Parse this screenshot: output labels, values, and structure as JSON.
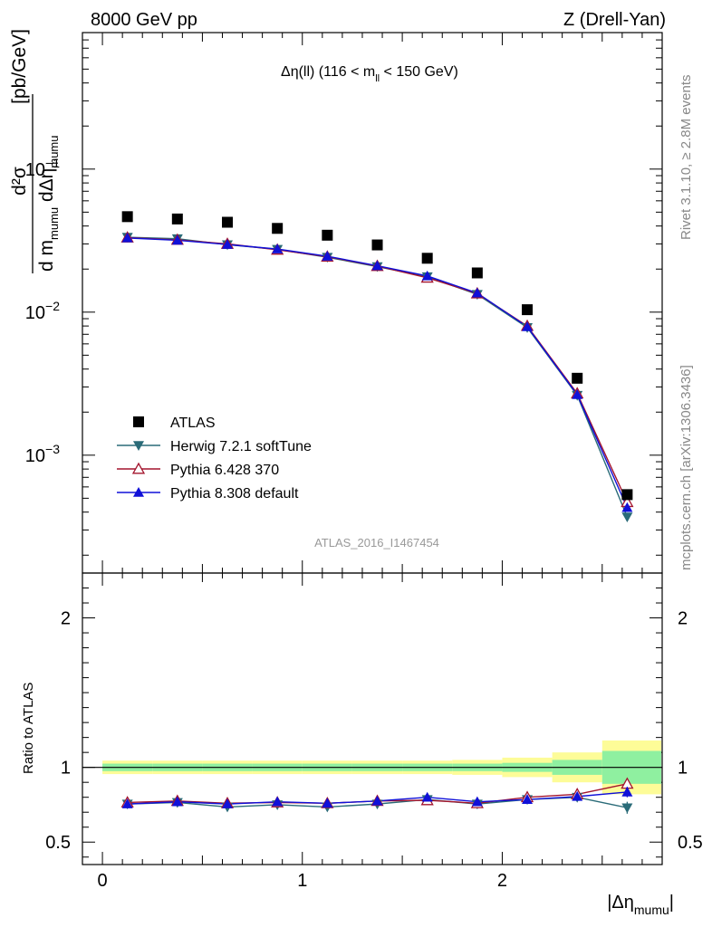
{
  "header": {
    "left": "8000 GeV pp",
    "right": "Z (Drell-Yan)"
  },
  "plot_title": {
    "main": "Δη(ll) (116 < m",
    "sub": "ll",
    "tail": " < 150 GeV)"
  },
  "side_labels": {
    "rivet": "Rivet 3.1.10, ≥ 2.8M events",
    "mcplots": "mcplots.cern.ch [arXiv:1306.3436]"
  },
  "analysis_id": "ATLAS_2016_I1467454",
  "y_label_main": {
    "unit": "[pb/GeV]",
    "num": "d²σ",
    "den_a": "d m",
    "den_a_sub": "mumu",
    "den_b": " dΔη",
    "den_b_sub": "mumu"
  },
  "y_label_ratio": "Ratio to ATLAS",
  "x_label": {
    "main": "|Δη",
    "sub": "mumu",
    "tail": "|"
  },
  "colors": {
    "atlas": "#000000",
    "herwig": "#2a6b78",
    "pythia6": "#a3142d",
    "pythia8": "#1010d8",
    "band_inner": "#8ff0a0",
    "band_outer": "#fdfc98"
  },
  "chart_data": [
    {
      "type": "line",
      "name": "main",
      "y_scale": "log",
      "xlim": [
        -0.1,
        2.8
      ],
      "ylim": [
        0.00015,
        0.9
      ],
      "y_ticks": [
        {
          "v": 0.1,
          "base": "10",
          "exp": "−1"
        },
        {
          "v": 0.01,
          "base": "10",
          "exp": "−2"
        },
        {
          "v": 0.001,
          "base": "10",
          "exp": "−3"
        }
      ],
      "x": [
        0.125,
        0.375,
        0.625,
        0.875,
        1.125,
        1.375,
        1.625,
        1.875,
        2.125,
        2.375,
        2.625
      ],
      "series": [
        {
          "name": "ATLAS",
          "marker": "square",
          "values": [
            0.0465,
            0.0448,
            0.0425,
            0.0385,
            0.0345,
            0.0295,
            0.0238,
            0.0188,
            0.0104,
            0.00345,
            0.00053
          ]
        },
        {
          "name": "Herwig 7.2.1 softTune",
          "marker": "triangle-down",
          "values": [
            0.0334,
            0.0326,
            0.0296,
            0.0275,
            0.0242,
            0.0208,
            0.0177,
            0.0133,
            0.0078,
            0.00262,
            0.00037
          ]
        },
        {
          "name": "Pythia 6.428 370",
          "marker": "triangle-up-open",
          "values": [
            0.0332,
            0.032,
            0.03,
            0.0273,
            0.0244,
            0.021,
            0.0174,
            0.0135,
            0.008,
            0.0027,
            0.00047
          ]
        },
        {
          "name": "Pythia 8.308 default",
          "marker": "triangle-up",
          "values": [
            0.033,
            0.0318,
            0.0297,
            0.0276,
            0.0246,
            0.0211,
            0.0179,
            0.0136,
            0.0079,
            0.00265,
            0.00043
          ]
        }
      ],
      "legend_position": "bottom-left"
    },
    {
      "type": "line",
      "name": "ratio",
      "xlim": [
        -0.1,
        2.8
      ],
      "ylim": [
        0.35,
        2.3
      ],
      "y_ticks": [
        {
          "v": 0.5,
          "label": "0.5"
        },
        {
          "v": 1,
          "label": "1"
        },
        {
          "v": 2,
          "label": "2"
        }
      ],
      "x_ticks": [
        {
          "v": 0,
          "label": "0"
        },
        {
          "v": 1,
          "label": "1"
        },
        {
          "v": 2,
          "label": "2"
        }
      ],
      "bins": [
        [
          0,
          0.25
        ],
        [
          0.25,
          0.5
        ],
        [
          0.5,
          0.75
        ],
        [
          0.75,
          1.0
        ],
        [
          1.0,
          1.25
        ],
        [
          1.25,
          1.5
        ],
        [
          1.5,
          1.75
        ],
        [
          1.75,
          2.0
        ],
        [
          2.0,
          2.25
        ],
        [
          2.25,
          2.5
        ],
        [
          2.5,
          2.8
        ]
      ],
      "band_inner": [
        0.025,
        0.025,
        0.025,
        0.025,
        0.025,
        0.025,
        0.025,
        0.025,
        0.03,
        0.05,
        0.11
      ],
      "band_outer": [
        0.045,
        0.045,
        0.045,
        0.045,
        0.045,
        0.045,
        0.045,
        0.05,
        0.065,
        0.1,
        0.18
      ],
      "x": [
        0.125,
        0.375,
        0.625,
        0.875,
        1.125,
        1.375,
        1.625,
        1.875,
        2.125,
        2.375,
        2.625
      ],
      "series": [
        {
          "name": "Herwig 7.2.1 softTune",
          "marker": "triangle-down",
          "values": [
            0.755,
            0.765,
            0.735,
            0.75,
            0.735,
            0.755,
            0.785,
            0.755,
            0.785,
            0.8,
            0.73
          ],
          "errors": [
            0.005,
            0.005,
            0.005,
            0.005,
            0.005,
            0.005,
            0.006,
            0.006,
            0.01,
            0.015,
            0.04
          ]
        },
        {
          "name": "Pythia 6.428 370",
          "marker": "triangle-up-open",
          "values": [
            0.765,
            0.775,
            0.76,
            0.765,
            0.76,
            0.775,
            0.78,
            0.76,
            0.8,
            0.82,
            0.89
          ],
          "errors": [
            0.005,
            0.005,
            0.005,
            0.005,
            0.005,
            0.005,
            0.006,
            0.006,
            0.01,
            0.015,
            0.035
          ]
        },
        {
          "name": "Pythia 8.308 default",
          "marker": "triangle-up",
          "values": [
            0.755,
            0.77,
            0.755,
            0.77,
            0.76,
            0.775,
            0.8,
            0.77,
            0.785,
            0.805,
            0.835
          ],
          "errors": [
            0.005,
            0.005,
            0.005,
            0.005,
            0.005,
            0.005,
            0.006,
            0.006,
            0.01,
            0.015,
            0.035
          ]
        }
      ]
    }
  ]
}
